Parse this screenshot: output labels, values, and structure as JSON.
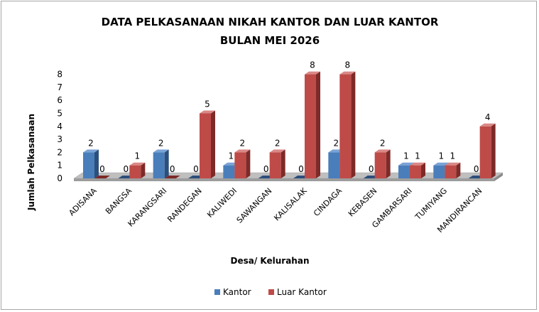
{
  "chart_data": {
    "type": "bar",
    "title_line1": "DATA PELKASANAAN  NIKAH KANTOR DAN LUAR KANTOR",
    "title_line2": "BULAN MEI 2026",
    "xlabel": "Desa/ Kelurahan",
    "ylabel": "Jumlah Pelkasanaan",
    "ylim": [
      0,
      8
    ],
    "yticks": [
      "0",
      "1",
      "2",
      "3",
      "4",
      "5",
      "6",
      "7",
      "8"
    ],
    "categories": [
      "ADISANA",
      "BANGSA",
      "KARANGSARI",
      "RANDEGAN",
      "KALIWEDI",
      "SAWANGAN",
      "KALISALAK",
      "CINDAGA",
      "KEBASEN",
      "GAMBARSARI",
      "TUMIYANG",
      "MANDIRANCAN"
    ],
    "series": [
      {
        "name": "Kantor",
        "values": [
          2,
          0,
          2,
          0,
          1,
          0,
          0,
          2,
          0,
          1,
          1,
          0
        ],
        "color": "#4a7ebb",
        "dark": "#2c4f7c",
        "light": "#7aa3d6"
      },
      {
        "name": "Luar Kantor",
        "values": [
          0,
          1,
          0,
          5,
          2,
          2,
          8,
          8,
          2,
          1,
          1,
          4
        ],
        "color": "#be4b48",
        "dark": "#7d2a28",
        "light": "#d98886"
      }
    ],
    "value_labels": [
      [
        "2",
        "0",
        "2",
        "0",
        "1",
        "0",
        "0",
        "2",
        "0",
        "1",
        "1",
        "0"
      ],
      [
        "0",
        "1",
        "0",
        "5",
        "2",
        "2",
        "8",
        "8",
        "2",
        "1",
        "1",
        "4"
      ]
    ],
    "legend_position": "bottom",
    "grid": false
  }
}
